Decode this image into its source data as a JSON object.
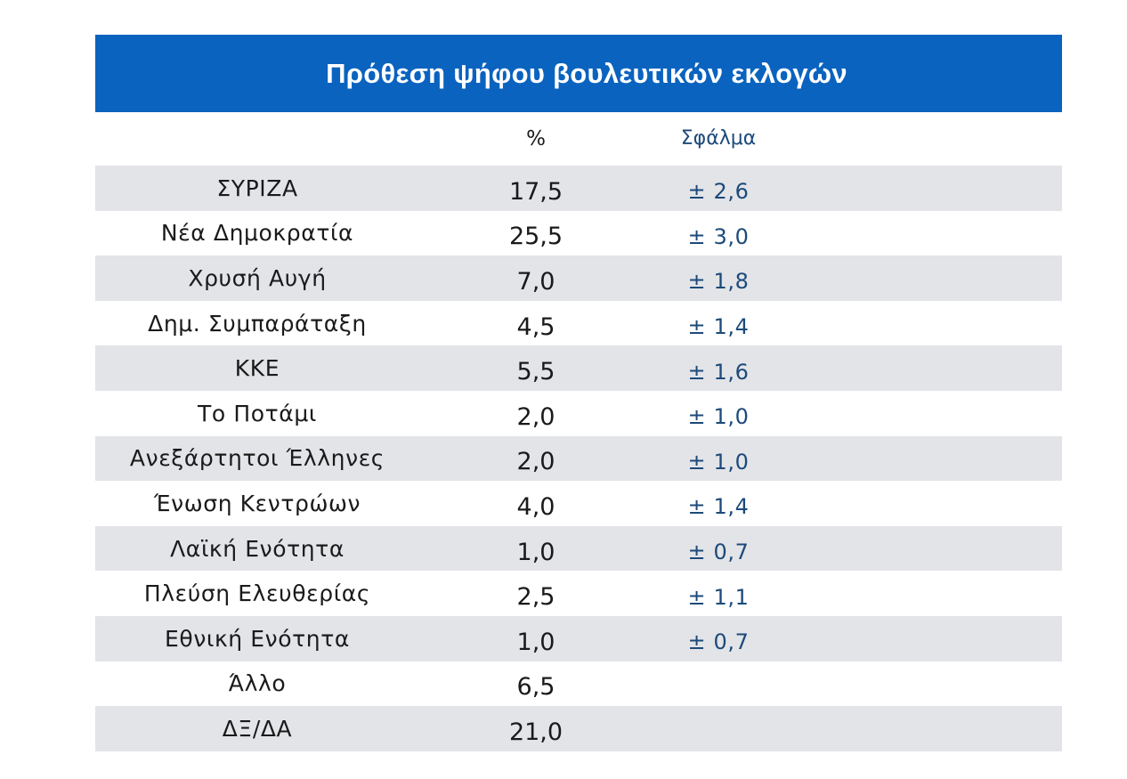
{
  "chart_data": {
    "type": "table",
    "title": "Πρόθεση ψήφου βουλευτικών εκλογών",
    "columns": [
      "",
      "%",
      "Σφάλμα"
    ],
    "rows": [
      {
        "party": "ΣΥΡΙΖΑ",
        "percent": "17,5",
        "error": "± 2,6"
      },
      {
        "party": "Νέα Δημοκρατία",
        "percent": "25,5",
        "error": "± 3,0"
      },
      {
        "party": "Χρυσή Αυγή",
        "percent": "7,0",
        "error": "± 1,8"
      },
      {
        "party": "Δημ. Συμπαράταξη",
        "percent": "4,5",
        "error": "± 1,4"
      },
      {
        "party": "ΚΚΕ",
        "percent": "5,5",
        "error": "± 1,6"
      },
      {
        "party": "Το Ποτάμι",
        "percent": "2,0",
        "error": "± 1,0"
      },
      {
        "party": "Ανεξάρτητοι Έλληνες",
        "percent": "2,0",
        "error": "± 1,0"
      },
      {
        "party": "Ένωση Κεντρώων",
        "percent": "4,0",
        "error": "± 1,4"
      },
      {
        "party": "Λαϊκή Ενότητα",
        "percent": "1,0",
        "error": "± 0,7"
      },
      {
        "party": "Πλεύση Ελευθερίας",
        "percent": "2,5",
        "error": "± 1,1"
      },
      {
        "party": "Εθνική Ενότητα",
        "percent": "1,0",
        "error": "± 0,7"
      },
      {
        "party": "Άλλο",
        "percent": "6,5",
        "error": ""
      },
      {
        "party": "ΔΞ/ΔΑ",
        "percent": "21,0",
        "error": ""
      }
    ]
  },
  "colors": {
    "header_bar": "#0a63bf",
    "shaded_row": "#e3e4e8",
    "error_text": "#1c4a7a"
  }
}
